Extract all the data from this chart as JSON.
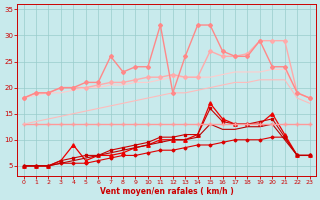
{
  "xlabel": "Vent moyen/en rafales ( km/h )",
  "xlim": [
    -0.5,
    23.5
  ],
  "ylim": [
    3,
    36
  ],
  "yticks": [
    5,
    10,
    15,
    20,
    25,
    30,
    35
  ],
  "xticks": [
    0,
    1,
    2,
    3,
    4,
    5,
    6,
    7,
    8,
    9,
    10,
    11,
    12,
    13,
    14,
    15,
    16,
    17,
    18,
    19,
    20,
    21,
    22,
    23
  ],
  "background_color": "#c8eaec",
  "grid_color": "#99cccc",
  "series": [
    {
      "x": [
        0,
        1,
        2,
        3,
        4,
        5,
        6,
        7,
        8,
        9,
        10,
        11,
        12,
        13,
        14,
        15,
        16,
        17,
        18,
        19,
        20,
        21,
        22,
        23
      ],
      "y": [
        5,
        5,
        5,
        5.5,
        5.5,
        5.5,
        6,
        6.5,
        7,
        7,
        7.5,
        8,
        8,
        8.5,
        9,
        9,
        9.5,
        10,
        10,
        10,
        10.5,
        10.5,
        7,
        7
      ],
      "color": "#dd0000",
      "lw": 0.8,
      "marker": "D",
      "ms": 1.5
    },
    {
      "x": [
        0,
        1,
        2,
        3,
        4,
        5,
        6,
        7,
        8,
        9,
        10,
        11,
        12,
        13,
        14,
        15,
        16,
        17,
        18,
        19,
        20,
        21,
        22,
        23
      ],
      "y": [
        5,
        5,
        5,
        6,
        9,
        6,
        7,
        7,
        7.5,
        8.5,
        9,
        10,
        10,
        10,
        11,
        17,
        14,
        13,
        13,
        13,
        15,
        11,
        7,
        7
      ],
      "color": "#ee0000",
      "lw": 0.9,
      "marker": "^",
      "ms": 2.5
    },
    {
      "x": [
        0,
        1,
        2,
        3,
        4,
        5,
        6,
        7,
        8,
        9,
        10,
        11,
        12,
        13,
        14,
        15,
        16,
        17,
        18,
        19,
        20,
        21,
        22,
        23
      ],
      "y": [
        5,
        5,
        5,
        6,
        6.5,
        7,
        7,
        8,
        8.5,
        9,
        9.5,
        10.5,
        10.5,
        11,
        11,
        16,
        13.5,
        13,
        13,
        13.5,
        14,
        10.5,
        7,
        7
      ],
      "color": "#cc0000",
      "lw": 0.8,
      "marker": "s",
      "ms": 1.5
    },
    {
      "x": [
        0,
        1,
        2,
        3,
        4,
        5,
        6,
        7,
        8,
        9,
        10,
        11,
        12,
        13,
        14,
        15,
        16,
        17,
        18,
        19,
        20,
        21,
        22,
        23
      ],
      "y": [
        5,
        5,
        5,
        5.5,
        6,
        6.5,
        7,
        7.5,
        8,
        8.5,
        9,
        9.5,
        10,
        10,
        10.5,
        13,
        12,
        12,
        12.5,
        12.5,
        13,
        10,
        7,
        7
      ],
      "color": "#bb0000",
      "lw": 0.8,
      "marker": null,
      "ms": 0
    },
    {
      "x": [
        0,
        1,
        2,
        3,
        4,
        5,
        6,
        7,
        8,
        9,
        10,
        11,
        12,
        13,
        14,
        15,
        16,
        17,
        18,
        19,
        20,
        21,
        22,
        23
      ],
      "y": [
        13,
        13,
        13,
        13,
        13,
        13,
        13,
        13,
        13,
        13,
        13,
        13,
        13,
        13,
        13,
        13,
        13,
        13,
        13,
        13,
        13,
        13,
        13,
        13
      ],
      "color": "#ff9999",
      "lw": 1.0,
      "marker": "+",
      "ms": 3.5
    },
    {
      "x": [
        0,
        1,
        2,
        3,
        4,
        5,
        6,
        7,
        8,
        9,
        10,
        11,
        12,
        13,
        14,
        15,
        16,
        17,
        18,
        19,
        20,
        21,
        22,
        23
      ],
      "y": [
        13,
        13.5,
        14,
        14.5,
        15,
        15.5,
        16,
        16.5,
        17,
        17.5,
        18,
        18.5,
        19,
        19,
        19.5,
        20,
        20.5,
        21,
        21,
        21.5,
        21.5,
        21.5,
        18,
        17
      ],
      "color": "#ffbbbb",
      "lw": 0.8,
      "marker": null,
      "ms": 0
    },
    {
      "x": [
        0,
        1,
        2,
        3,
        4,
        5,
        6,
        7,
        8,
        9,
        10,
        11,
        12,
        13,
        14,
        15,
        16,
        17,
        18,
        19,
        20,
        21,
        22,
        23
      ],
      "y": [
        18,
        18.5,
        19,
        19,
        19.5,
        20,
        20,
        20.5,
        20.5,
        21,
        21,
        21.5,
        22,
        22,
        22,
        22,
        22.5,
        23,
        23,
        23,
        23.5,
        23.5,
        19,
        18
      ],
      "color": "#ffcccc",
      "lw": 0.8,
      "marker": null,
      "ms": 0
    },
    {
      "x": [
        0,
        1,
        2,
        3,
        4,
        5,
        6,
        7,
        8,
        9,
        10,
        11,
        12,
        13,
        14,
        15,
        16,
        17,
        18,
        19,
        20,
        21,
        22,
        23
      ],
      "y": [
        18,
        19,
        19,
        20,
        20,
        20,
        20.5,
        21,
        21,
        21.5,
        22,
        22,
        22.5,
        22,
        22,
        27,
        26,
        26,
        26.5,
        29,
        29,
        29,
        19,
        18
      ],
      "color": "#ffaaaa",
      "lw": 1.0,
      "marker": "D",
      "ms": 2
    },
    {
      "x": [
        0,
        1,
        2,
        3,
        4,
        5,
        6,
        7,
        8,
        9,
        10,
        11,
        12,
        13,
        14,
        15,
        16,
        17,
        18,
        19,
        20,
        21,
        22,
        23
      ],
      "y": [
        18,
        19,
        19,
        20,
        20,
        21,
        21,
        26,
        23,
        24,
        24,
        32,
        19,
        26,
        32,
        32,
        27,
        26,
        26,
        29,
        24,
        24,
        19,
        18
      ],
      "color": "#ff8888",
      "lw": 1.0,
      "marker": "D",
      "ms": 2
    }
  ]
}
